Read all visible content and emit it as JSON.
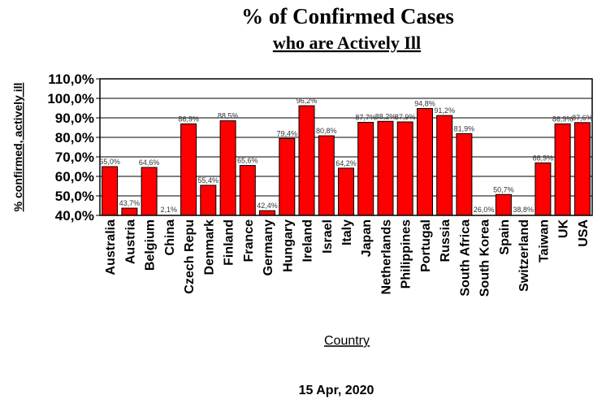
{
  "chart_data": {
    "type": "bar",
    "title": "% of Confirmed Cases",
    "subtitle": "who are Actively Ill",
    "xlabel": "Country",
    "ylabel": "% confirmed, actively ill",
    "footer": "15 Apr, 2020",
    "ylim": [
      40,
      110
    ],
    "yticks": [
      40,
      50,
      60,
      70,
      80,
      90,
      100,
      110
    ],
    "ytick_labels": [
      "40,0%",
      "50,0%",
      "60,0%",
      "70,0%",
      "80,0%",
      "90,0%",
      "100,0%",
      "110,0%"
    ],
    "grid": "horizontal",
    "bar_color": "#ff0000",
    "categories": [
      "Australia",
      "Austria",
      "Belgium",
      "China",
      "Czech Repu",
      "Denmark",
      "Finland",
      "France",
      "Germany",
      "Hungary",
      "Ireland",
      "Israel",
      "Italy",
      "Japan",
      "Netherlands",
      "Philippines",
      "Portugal",
      "Russia",
      "South Africa",
      "South Korea",
      "Spain",
      "Switzerland",
      "Taiwan",
      "UK",
      "USA"
    ],
    "values": [
      65.0,
      43.7,
      64.6,
      2.1,
      86.9,
      55.4,
      88.5,
      65.6,
      42.4,
      79.4,
      96.2,
      80.8,
      64.2,
      87.7,
      88.2,
      87.9,
      94.8,
      91.2,
      81.9,
      26.0,
      50.7,
      38.8,
      66.9,
      86.9,
      87.6
    ],
    "value_labels": [
      "65,0%",
      "43,7%",
      "64,6%",
      "2,1%",
      "86,9%",
      "55,4%",
      "88,5%",
      "65,6%",
      "42,4%",
      "79,4%",
      "96,2%",
      "80,8%",
      "64,2%",
      "87,7%",
      "88,2%",
      "87,9%",
      "94,8%",
      "91,2%",
      "81,9%",
      "26,0%",
      "50,7%",
      "38,8%",
      "66,9%",
      "86,9%",
      "87,6%"
    ]
  }
}
